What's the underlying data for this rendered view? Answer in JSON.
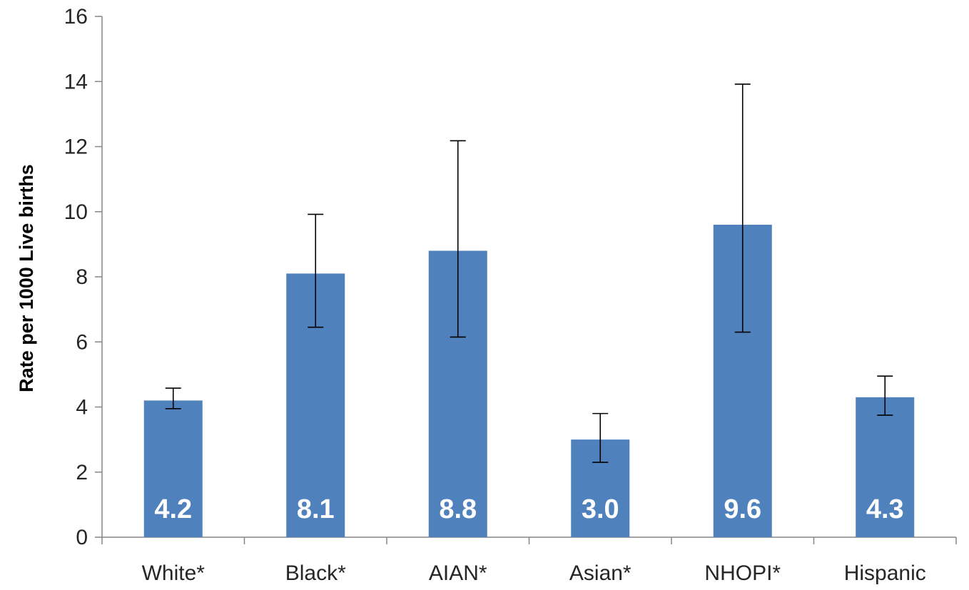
{
  "chart_data": {
    "type": "bar",
    "title": "",
    "xlabel": "",
    "ylabel": "Rate per 1000 Live births",
    "ylim": [
      0,
      16
    ],
    "yticks": [
      0,
      2,
      4,
      6,
      8,
      10,
      12,
      14,
      16
    ],
    "grid": false,
    "legend": "none",
    "categories": [
      "White*",
      "Black*",
      "AIAN*",
      "Asian*",
      "NHOPI*",
      "Hispanic"
    ],
    "values": [
      4.2,
      8.1,
      8.8,
      3.0,
      9.6,
      4.3
    ],
    "data_labels": [
      "4.2",
      "8.1",
      "8.8",
      "3.0",
      "9.6",
      "4.3"
    ],
    "error_low": [
      3.95,
      6.45,
      6.15,
      2.3,
      6.3,
      3.75
    ],
    "error_high": [
      4.58,
      9.92,
      12.18,
      3.8,
      13.92,
      4.95
    ],
    "bar_color": "#4f81bd",
    "label_color": "#ffffff",
    "error_bar_color": "#000000"
  }
}
